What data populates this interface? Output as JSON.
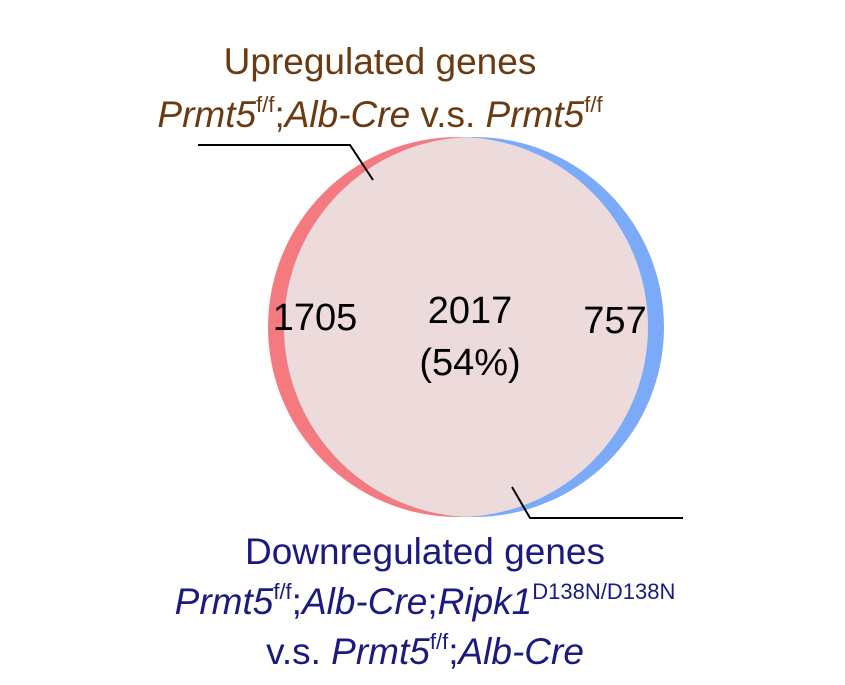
{
  "upregulated": {
    "title": "Upregulated genes",
    "gene1": "Prmt5",
    "gene1_sup": "f/f",
    "sep1": ";",
    "cre": "Alb-Cre",
    "vs": " v.s. ",
    "gene2": "Prmt5",
    "gene2_sup": "f/f",
    "color": "#f47a80"
  },
  "downregulated": {
    "title": "Downregulated genes",
    "gene1": "Prmt5",
    "gene1_sup": "f/f",
    "sep1": ";",
    "cre": "Alb-Cre",
    "sep2": ";",
    "ripk": "Ripk1",
    "ripk_sup": "D138N/D138N",
    "vs": "v.s. ",
    "gene2": "Prmt5",
    "gene2_sup": "f/f",
    "sep3": ";",
    "cre2": "Alb-Cre",
    "color": "#7aaaf8"
  },
  "counts": {
    "left_only": "1705",
    "overlap": "2017",
    "overlap_pct": "(54%)",
    "right_only": "757"
  },
  "overlap_color": "#eddbdb"
}
